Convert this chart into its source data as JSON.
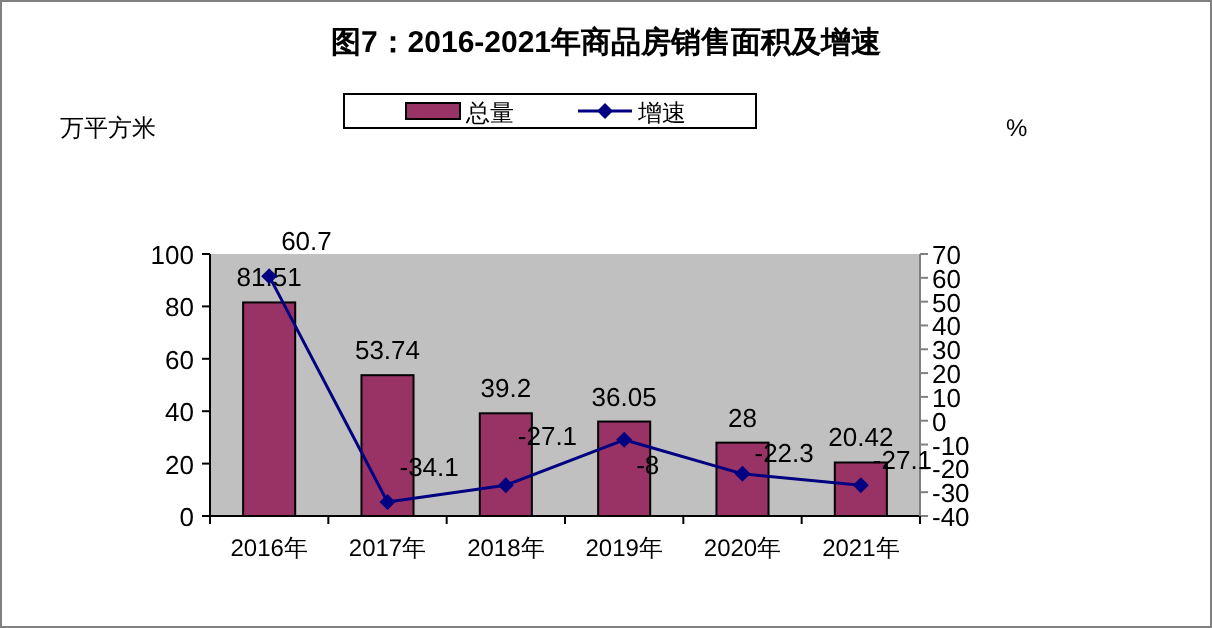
{
  "chart_data": {
    "type": "bar",
    "title": "图7：2016-2021年商品房销售面积及增速",
    "ylabel": "万平方米",
    "y2label": "%",
    "categories": [
      "2016年",
      "2017年",
      "2018年",
      "2019年",
      "2020年",
      "2021年"
    ],
    "series": [
      {
        "name": "总量",
        "color": "#993366",
        "values": [
          81.51,
          53.74,
          39.2,
          36.05,
          28,
          20.42
        ]
      },
      {
        "name": "增速",
        "type": "line",
        "axis": "y2",
        "color": "#000080",
        "marker": "diamond",
        "values": [
          60.7,
          -34.1,
          -27.1,
          -8,
          -22.3,
          -27.1
        ]
      }
    ],
    "ylim": [
      0,
      100
    ],
    "yticks": [
      0,
      20,
      40,
      60,
      80,
      100
    ],
    "y2lim": [
      -40,
      70
    ],
    "y2ticks": [
      -40,
      -30,
      -20,
      -10,
      0,
      10,
      20,
      30,
      40,
      50,
      60,
      70
    ],
    "data_labels": true,
    "legend": "top",
    "grid": false
  }
}
